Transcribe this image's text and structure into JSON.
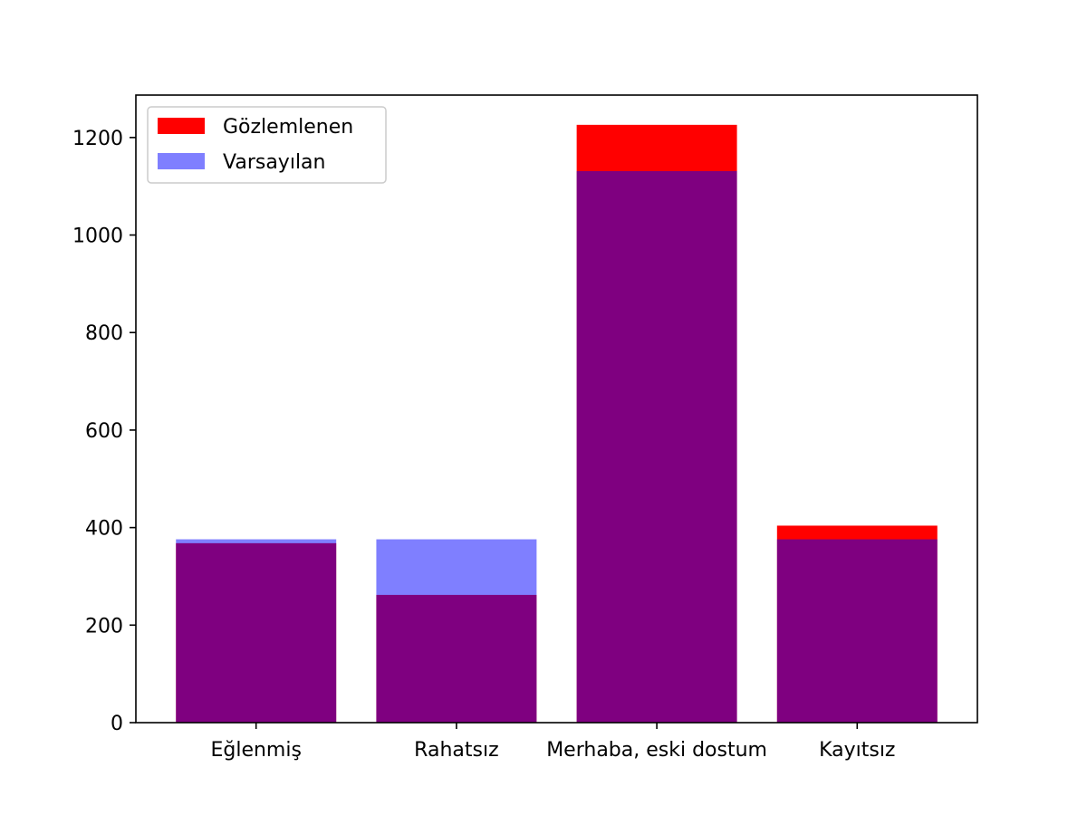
{
  "chart_data": {
    "type": "bar",
    "title": "",
    "xlabel": "",
    "ylabel": "",
    "categories": [
      "Eğlenmiş",
      "Rahatsız",
      "Merhaba, eski dostum",
      "Kayıtsız"
    ],
    "series": [
      {
        "name": "Gözlemlenen",
        "values": [
          368,
          262,
          1226,
          404
        ],
        "color": "#ff0000",
        "opacity": 1
      },
      {
        "name": "Varsayılan",
        "values": [
          376,
          376,
          1131,
          376
        ],
        "color": "#0000ff",
        "opacity": 0.5
      }
    ],
    "overlay": true,
    "ylim": [
      0,
      1287
    ],
    "yticks": [
      0,
      200,
      400,
      600,
      800,
      1000,
      1200
    ],
    "grid": false,
    "legend_position": "top-left"
  }
}
